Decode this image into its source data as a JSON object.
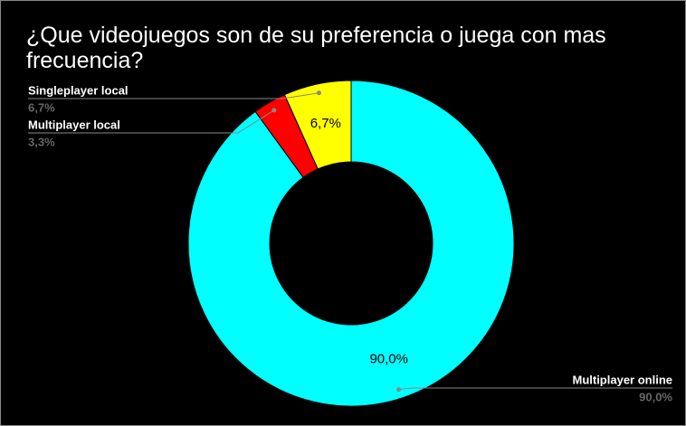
{
  "chart_data": {
    "type": "pie",
    "title": "¿Que videojuegos son de su preferencia o juega con mas frecuencia?",
    "categories": [
      "Multiplayer online",
      "Multiplayer local",
      "Singleplayer local"
    ],
    "values": [
      90.0,
      3.3,
      6.7
    ],
    "value_labels": [
      "90,0%",
      "3,3%",
      "6,7%"
    ],
    "colors": [
      "#00ffff",
      "#ff0000",
      "#ffff00"
    ],
    "donut": true
  }
}
